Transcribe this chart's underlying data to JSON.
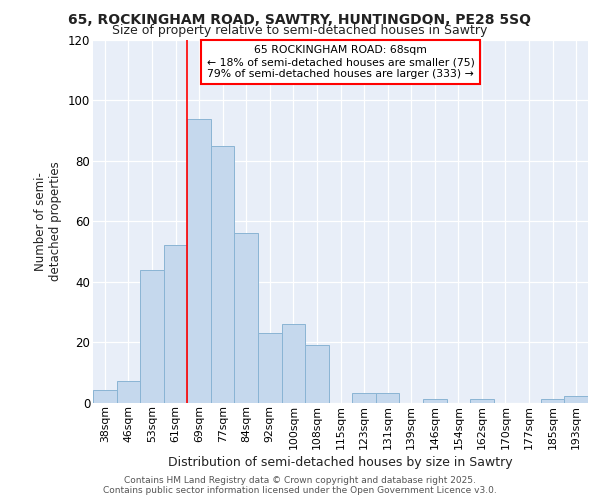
{
  "title1": "65, ROCKINGHAM ROAD, SAWTRY, HUNTINGDON, PE28 5SQ",
  "title2": "Size of property relative to semi-detached houses in Sawtry",
  "xlabel": "Distribution of semi-detached houses by size in Sawtry",
  "ylabel": "Number of semi-detached properties",
  "categories": [
    "38sqm",
    "46sqm",
    "53sqm",
    "61sqm",
    "69sqm",
    "77sqm",
    "84sqm",
    "92sqm",
    "100sqm",
    "108sqm",
    "115sqm",
    "123sqm",
    "131sqm",
    "139sqm",
    "146sqm",
    "154sqm",
    "162sqm",
    "170sqm",
    "177sqm",
    "185sqm",
    "193sqm"
  ],
  "values": [
    4,
    7,
    44,
    52,
    94,
    85,
    56,
    23,
    26,
    19,
    0,
    3,
    3,
    0,
    1,
    0,
    1,
    0,
    0,
    1,
    2
  ],
  "bar_color": "#c5d8ed",
  "bar_edge_color": "#8ab4d4",
  "property_label": "65 ROCKINGHAM ROAD: 68sqm",
  "annotation_line1": "← 18% of semi-detached houses are smaller (75)",
  "annotation_line2": "79% of semi-detached houses are larger (333) →",
  "vline_bin_index": 4,
  "ylim": [
    0,
    120
  ],
  "yticks": [
    0,
    20,
    40,
    60,
    80,
    100,
    120
  ],
  "background_color": "#e8eef8",
  "fig_background": "#ffffff",
  "footer1": "Contains HM Land Registry data © Crown copyright and database right 2025.",
  "footer2": "Contains public sector information licensed under the Open Government Licence v3.0."
}
